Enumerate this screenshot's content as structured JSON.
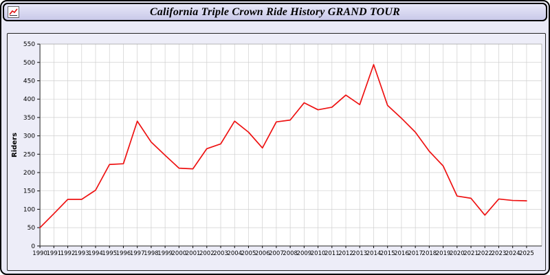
{
  "header": {
    "title": "California Triple Crown Ride History GRAND TOUR"
  },
  "colors": {
    "page_bg": "#e9e9f6",
    "titlebar_bg": "#d6d6ef",
    "chart_bg": "#ededf8",
    "plot_bg": "#ffffff",
    "grid": "#cfcfcf",
    "axis": "#444444",
    "tick_text": "#000000",
    "line": "#ee1111"
  },
  "chart_data": {
    "type": "line",
    "title": "California Triple Crown Ride History GRAND TOUR",
    "xlabel": "",
    "ylabel": "Riders",
    "ylim": [
      0,
      550
    ],
    "ytick_step": 50,
    "grid": true,
    "legend_position": "none",
    "x": [
      1990,
      1991,
      1992,
      1993,
      1994,
      1995,
      1996,
      1997,
      1998,
      1999,
      2000,
      2001,
      2002,
      2003,
      2004,
      2005,
      2006,
      2007,
      2008,
      2009,
      2010,
      2011,
      2012,
      2013,
      2014,
      2015,
      2016,
      2017,
      2018,
      2019,
      2020,
      2021,
      2022,
      2023,
      2024,
      2025
    ],
    "series": [
      {
        "name": "Riders",
        "color": "#ee1111",
        "values": [
          50,
          88,
          127,
          127,
          152,
          222,
          224,
          340,
          283,
          247,
          212,
          210,
          265,
          278,
          340,
          310,
          267,
          338,
          343,
          390,
          371,
          378,
          411,
          385,
          494,
          383,
          348,
          310,
          258,
          218,
          136,
          130,
          84,
          128,
          124,
          123
        ]
      }
    ]
  }
}
